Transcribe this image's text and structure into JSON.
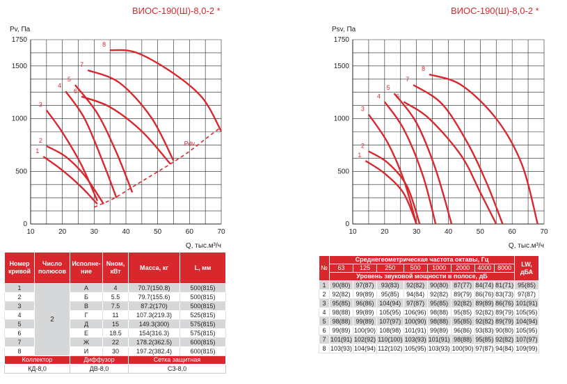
{
  "chart_data": [
    {
      "type": "line",
      "title": "ВИОС-190(Ш)-8,0-2 *",
      "ylabel": "Pv, Па",
      "xlabel": "Q, тыс.м³/ч",
      "xlim": [
        10,
        70
      ],
      "ylim": [
        0,
        1750
      ],
      "xticks": [
        "10",
        "20",
        "30",
        "40",
        "50",
        "60",
        "70"
      ],
      "yticks": [
        "0",
        "500",
        "1000",
        "1500",
        "1750"
      ],
      "grid": true,
      "series": [
        {
          "name": "1",
          "points": [
            [
              14,
              640
            ],
            [
              20,
              510
            ],
            [
              26,
              350
            ],
            [
              31,
              190
            ]
          ]
        },
        {
          "name": "2",
          "points": [
            [
              15,
              740
            ],
            [
              21,
              640
            ],
            [
              27,
              460
            ],
            [
              33,
              190
            ]
          ]
        },
        {
          "name": "3",
          "points": [
            [
              15,
              1080
            ],
            [
              20,
              870
            ],
            [
              26,
              560
            ],
            [
              31,
              220
            ]
          ]
        },
        {
          "name": "4",
          "points": [
            [
              21,
              1260
            ],
            [
              27,
              1000
            ],
            [
              33,
              570
            ],
            [
              37,
              250
            ]
          ]
        },
        {
          "name": "5",
          "points": [
            [
              24,
              1320
            ],
            [
              31,
              1050
            ],
            [
              37,
              680
            ],
            [
              42,
              300
            ]
          ]
        },
        {
          "name": "6",
          "points": [
            [
              26,
              1210
            ],
            [
              35,
              1110
            ],
            [
              45,
              880
            ],
            [
              54,
              570
            ]
          ]
        },
        {
          "name": "7",
          "points": [
            [
              28,
              1460
            ],
            [
              38,
              1340
            ],
            [
              48,
              1010
            ],
            [
              55,
              600
            ]
          ]
        },
        {
          "name": "8",
          "points": [
            [
              35,
              1650
            ],
            [
              43,
              1630
            ],
            [
              54,
              1450
            ],
            [
              64,
              1200
            ],
            [
              70,
              880
            ]
          ]
        },
        {
          "name": "Pdv",
          "dashed": true,
          "points": [
            [
              30,
              160
            ],
            [
              36,
              240
            ],
            [
              42,
              350
            ],
            [
              48,
              460
            ],
            [
              54,
              570
            ],
            [
              60,
              690
            ],
            [
              66,
              830
            ],
            [
              70,
              920
            ]
          ]
        }
      ]
    },
    {
      "type": "line",
      "title": "ВИОС-190(Ш)-8,0-2 *",
      "ylabel": "Psv, Па",
      "xlabel": "Q, тыс.м³/ч",
      "xlim": [
        10,
        70
      ],
      "ylim": [
        0,
        1750
      ],
      "xticks": [
        "10",
        "20",
        "30",
        "40",
        "50",
        "60",
        "70"
      ],
      "yticks": [
        "0",
        "500",
        "1000",
        "1500",
        "1750"
      ],
      "grid": true,
      "series": [
        {
          "name": "1",
          "points": [
            [
              14,
              600
            ],
            [
              20,
              480
            ],
            [
              26,
              290
            ],
            [
              30,
              0
            ]
          ]
        },
        {
          "name": "2",
          "points": [
            [
              15,
              690
            ],
            [
              21,
              580
            ],
            [
              27,
              360
            ],
            [
              31,
              0
            ]
          ]
        },
        {
          "name": "3",
          "points": [
            [
              15,
              1040
            ],
            [
              21,
              770
            ],
            [
              26,
              420
            ],
            [
              30,
              0
            ]
          ]
        },
        {
          "name": "4",
          "points": [
            [
              20,
              1160
            ],
            [
              26,
              900
            ],
            [
              32,
              460
            ],
            [
              36,
              0
            ]
          ]
        },
        {
          "name": "5",
          "points": [
            [
              23,
              1240
            ],
            [
              30,
              960
            ],
            [
              36,
              520
            ],
            [
              41,
              0
            ]
          ]
        },
        {
          "name": "6",
          "points": [
            [
              26,
              1160
            ],
            [
              34,
              1000
            ],
            [
              44,
              650
            ],
            [
              50,
              300
            ],
            [
              55,
              0
            ]
          ]
        },
        {
          "name": "7",
          "points": [
            [
              29,
              1320
            ],
            [
              38,
              1140
            ],
            [
              46,
              770
            ],
            [
              52,
              390
            ],
            [
              57,
              0
            ]
          ]
        },
        {
          "name": "8",
          "points": [
            [
              34,
              1420
            ],
            [
              44,
              1320
            ],
            [
              55,
              1000
            ],
            [
              63,
              570
            ],
            [
              68,
              0
            ]
          ]
        }
      ]
    }
  ],
  "left_table": {
    "headers": [
      "Номер кривой",
      "Число полюсов",
      "Исполне-ние",
      "Nном, кВт",
      "Масса, кг",
      "L, мм"
    ],
    "poles": "2",
    "rows": [
      [
        "1",
        "А",
        "4",
        "70.7(150.8)",
        "500(815)"
      ],
      [
        "2",
        "Б",
        "5.5",
        "79.7(155.6)",
        "500(815)"
      ],
      [
        "3",
        "В",
        "7.5",
        "87.2(170)",
        "500(815)"
      ],
      [
        "4",
        "Г",
        "11",
        "107.3(219.3)",
        "525(815)"
      ],
      [
        "5",
        "Д",
        "15",
        "149.3(300)",
        "575(815)"
      ],
      [
        "6",
        "Е",
        "18.5",
        "154(316.3)",
        "575(815)"
      ],
      [
        "7",
        "Ж",
        "22",
        "178.2(362.5)",
        "600(815)"
      ],
      [
        "8",
        "И",
        "30",
        "197.2(382.4)",
        "600(815)"
      ]
    ],
    "accessory_headers": [
      "Коллектор",
      "Диффузор",
      "Сетка защитная"
    ],
    "accessory_values": [
      "КД-8,0",
      "ДВ-8,0",
      "СЗ-8,0"
    ]
  },
  "right_table": {
    "num_header": "№",
    "freq_header": "Среднегеометрическая частота октавы, Гц",
    "freqs": [
      "63",
      "125",
      "250",
      "500",
      "1000",
      "2000",
      "4000",
      "8000"
    ],
    "power_header": "Уровень звуковой мощности в полосе, дБ",
    "lw_header": "LW, дБА",
    "rows": [
      [
        "1",
        "90(80)",
        "97(87)",
        "93(83)",
        "92(82)",
        "90(80)",
        "87(77)",
        "84(74)",
        "81(71)",
        "95(85)"
      ],
      [
        "2",
        "92(82)",
        "99(89)",
        "95(85)",
        "94(84)",
        "92(82)",
        "89(79)",
        "86(76)",
        "83(73)",
        "97(87)"
      ],
      [
        "3",
        "95(85)",
        "96(86)",
        "104(94)",
        "97(87)",
        "95(85)",
        "92(82)",
        "89(89)",
        "86(76)",
        "101(91)"
      ],
      [
        "4",
        "98(88)",
        "99(89)",
        "105(95)",
        "106(96)",
        "98(88)",
        "95(85)",
        "92(82)",
        "89(79)",
        "105(95)"
      ],
      [
        "5",
        "98(88)",
        "99(89)",
        "107(97)",
        "100(90)",
        "98(88)",
        "95(85)",
        "92(82)",
        "89(79)",
        "104(94)"
      ],
      [
        "6",
        "99(89)",
        "100(90)",
        "108(98)",
        "101(91)",
        "99(89)",
        "96(86)",
        "93(83)",
        "90(80)",
        "105(95)"
      ],
      [
        "7",
        "101(91)",
        "102(92)",
        "110(100)",
        "103(93)",
        "101(91)",
        "98(88)",
        "95(85)",
        "92(82)",
        "107(97)"
      ],
      [
        "8",
        "103(93)",
        "104(94)",
        "112(102)",
        "105(95)",
        "103(93)",
        "100(90)",
        "97(87)",
        "94(84)",
        "109(99)"
      ]
    ]
  },
  "colors": {
    "curve": "#d8282e",
    "header_bg": "#d8282e",
    "row_alt": "#d6d7d8",
    "grid": "#222222"
  }
}
